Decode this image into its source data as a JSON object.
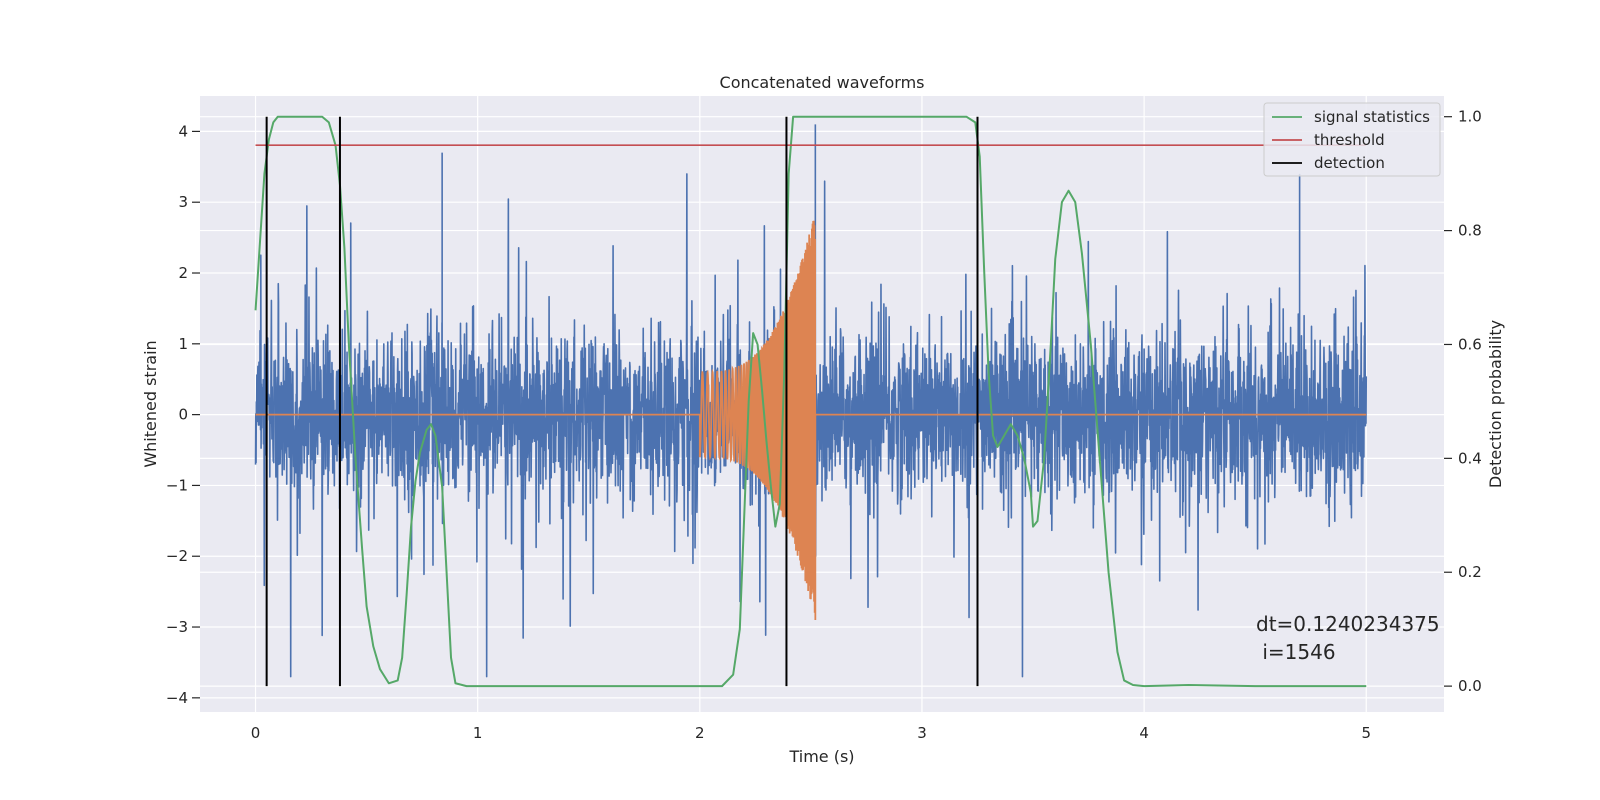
{
  "chart_data": {
    "type": "line",
    "title": "Concatenated waveforms",
    "xlabel": "Time (s)",
    "ylabel_left": "Whitened strain",
    "ylabel_right": "Detection probability",
    "xlim": [
      -0.25,
      5.35
    ],
    "ylim_left": [
      -4.2,
      4.5
    ],
    "ylim_right": [
      -0.04545,
      1.03636
    ],
    "x_ticks": [
      0,
      1,
      2,
      3,
      4,
      5
    ],
    "y_ticks_left": [
      -4,
      -3,
      -2,
      -1,
      0,
      1,
      2,
      3,
      4
    ],
    "y_ticks_right": [
      0.0,
      0.2,
      0.4,
      0.6,
      0.8,
      1.0
    ],
    "x_tick_labels": [
      "0",
      "1",
      "2",
      "3",
      "4",
      "5"
    ],
    "y_tick_labels_left": [
      "−4",
      "−3",
      "−2",
      "−1",
      "0",
      "1",
      "2",
      "3",
      "4"
    ],
    "y_tick_labels_right": [
      "0.0",
      "0.2",
      "0.4",
      "0.6",
      "0.8",
      "1.0"
    ],
    "grid": true,
    "legend_position": "top-right",
    "legend": [
      {
        "label": "signal statistics",
        "color": "#55a868"
      },
      {
        "label": "threshold",
        "color": "#c44e52"
      },
      {
        "label": "detection",
        "color": "#000000"
      }
    ],
    "series": [
      {
        "name": "strain_noise",
        "axis": "left",
        "color": "#4c72b0",
        "x_start": 0,
        "x_end": 5,
        "approx_envelope": [
          1.4,
          -1.5
        ],
        "note_max_spikes": [
          [
            0.84,
            3.7
          ],
          [
            2.52,
            4.1
          ],
          [
            4.7,
            3.4
          ]
        ]
      },
      {
        "name": "injected_waveform",
        "axis": "left",
        "color": "#dd8452",
        "x_start": 0,
        "x_end": 5,
        "chirp_start": 2.0,
        "chirp_end": 2.52,
        "chirp_amplitude_start": 0.6,
        "chirp_amplitude_end": 2.9
      },
      {
        "name": "signal statistics",
        "axis": "right",
        "color": "#55a868",
        "x": [
          0.0,
          0.02,
          0.04,
          0.06,
          0.08,
          0.1,
          0.12,
          0.15,
          0.2,
          0.25,
          0.3,
          0.33,
          0.36,
          0.38,
          0.4,
          0.42,
          0.45,
          0.48,
          0.5,
          0.53,
          0.56,
          0.6,
          0.64,
          0.66,
          0.68,
          0.7,
          0.72,
          0.74,
          0.77,
          0.79,
          0.81,
          0.84,
          0.86,
          0.88,
          0.9,
          0.95,
          1.2,
          1.5,
          1.8,
          2.1,
          2.15,
          2.18,
          2.2,
          2.22,
          2.24,
          2.26,
          2.28,
          2.3,
          2.32,
          2.34,
          2.36,
          2.38,
          2.4,
          2.42,
          2.45,
          2.5,
          2.7,
          3.0,
          3.2,
          3.24,
          3.26,
          3.28,
          3.3,
          3.32,
          3.34,
          3.37,
          3.4,
          3.43,
          3.46,
          3.49,
          3.5,
          3.52,
          3.55,
          3.58,
          3.6,
          3.63,
          3.66,
          3.69,
          3.72,
          3.76,
          3.8,
          3.84,
          3.88,
          3.91,
          3.95,
          4.0,
          4.2,
          4.5,
          4.8,
          5.0
        ],
        "y": [
          0.66,
          0.78,
          0.9,
          0.96,
          0.99,
          1.0,
          1.0,
          1.0,
          1.0,
          1.0,
          1.0,
          0.99,
          0.95,
          0.88,
          0.77,
          0.6,
          0.4,
          0.24,
          0.14,
          0.07,
          0.03,
          0.005,
          0.01,
          0.05,
          0.16,
          0.28,
          0.36,
          0.41,
          0.45,
          0.46,
          0.44,
          0.35,
          0.2,
          0.05,
          0.005,
          0.0,
          0.0,
          0.0,
          0.0,
          0.0,
          0.02,
          0.1,
          0.3,
          0.5,
          0.62,
          0.6,
          0.52,
          0.43,
          0.35,
          0.28,
          0.32,
          0.55,
          0.9,
          1.0,
          1.0,
          1.0,
          1.0,
          1.0,
          1.0,
          0.99,
          0.93,
          0.73,
          0.55,
          0.44,
          0.42,
          0.44,
          0.46,
          0.44,
          0.4,
          0.34,
          0.28,
          0.29,
          0.4,
          0.6,
          0.75,
          0.85,
          0.87,
          0.85,
          0.76,
          0.6,
          0.4,
          0.2,
          0.06,
          0.01,
          0.002,
          0.0,
          0.002,
          0.0,
          0.0,
          0.0
        ]
      },
      {
        "name": "threshold",
        "axis": "right",
        "color": "#c44e52",
        "x": [
          0,
          5
        ],
        "y": [
          0.95,
          0.95
        ]
      }
    ],
    "detections": [
      0.05,
      0.38,
      2.39,
      3.25
    ],
    "annotations": [
      {
        "text": "dt=0.1240234375",
        "x": 4.5,
        "y": -3.0
      },
      {
        "text": " i=1546",
        "x": 4.5,
        "y": -3.38
      }
    ]
  }
}
